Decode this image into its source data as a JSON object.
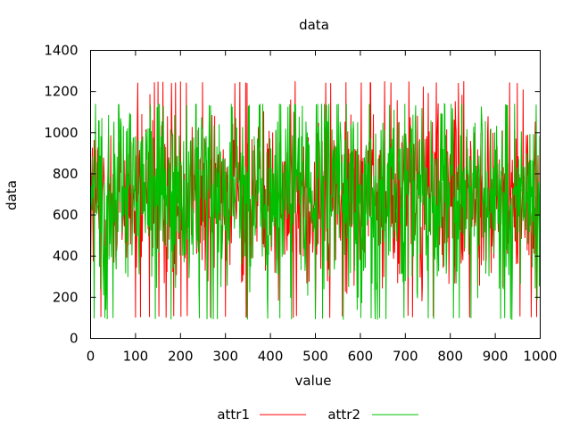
{
  "chart_data": {
    "type": "line",
    "title": "data",
    "xlabel": "value",
    "ylabel": "data",
    "xlim": [
      0,
      1000
    ],
    "ylim": [
      0,
      1400
    ],
    "grid": false,
    "legend_position": "bottom",
    "x_ticks": [
      "0",
      "100",
      "200",
      "300",
      "400",
      "500",
      "600",
      "700",
      "800",
      "900",
      "1000"
    ],
    "y_ticks": [
      "0",
      "200",
      "400",
      "600",
      "800",
      "1000",
      "1200",
      "1400"
    ],
    "series": [
      {
        "name": "attr1",
        "color": "#ff0000",
        "summary": {
          "n": 1000,
          "min": 100,
          "max": 1250,
          "mean": 680
        }
      },
      {
        "name": "attr2",
        "color": "#00c000",
        "summary": {
          "n": 1000,
          "min": 90,
          "max": 1140,
          "mean": 700
        }
      }
    ]
  }
}
